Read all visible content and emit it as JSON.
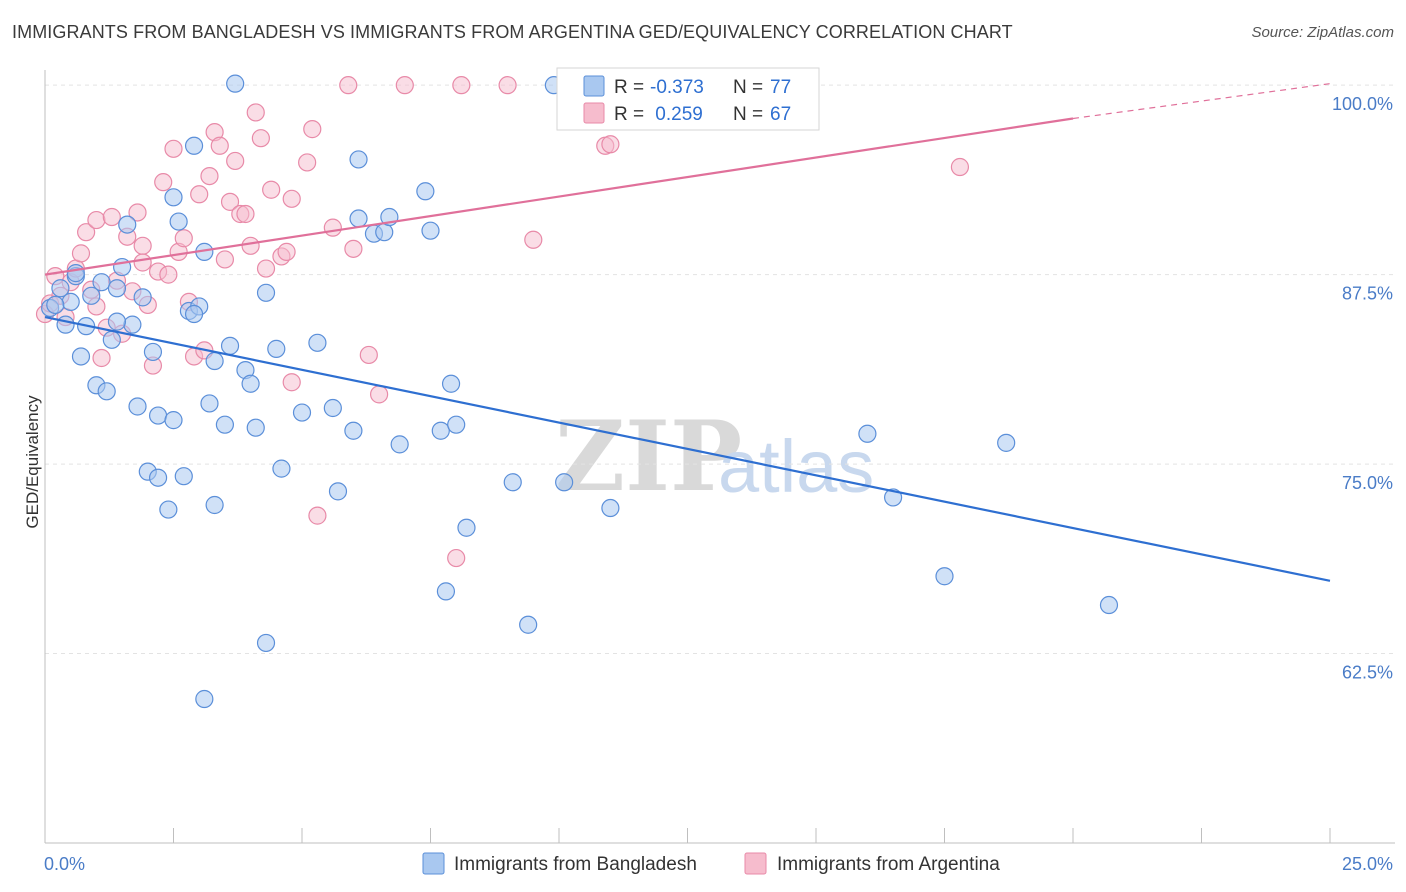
{
  "header": {
    "title": "IMMIGRANTS FROM BANGLADESH VS IMMIGRANTS FROM ARGENTINA GED/EQUIVALENCY CORRELATION CHART",
    "source": "Source: ZipAtlas.com"
  },
  "watermark": {
    "zip": "ZIP",
    "atlas": "atlas"
  },
  "colors": {
    "blue_fill": "#a9c8f0",
    "blue_stroke": "#5b8fd9",
    "blue_line": "#2e6fd1",
    "pink_fill": "#f6bccd",
    "pink_stroke": "#e88aa8",
    "pink_line": "#e0709a",
    "grid": "#e3e3e3",
    "tick_text": "#4a7cc7"
  },
  "legend": {
    "rows": [
      {
        "r_label": "R =",
        "r_value": "-0.373",
        "n_label": "N =",
        "n_value": "77"
      },
      {
        "r_label": "R =",
        "r_value": " 0.259",
        "n_label": "N =",
        "n_value": "67"
      }
    ]
  },
  "bottom_legend": {
    "series_a": "Immigrants from Bangladesh",
    "series_b": "Immigrants from Argentina"
  },
  "chart_data": {
    "type": "scatter",
    "title": "IMMIGRANTS FROM BANGLADESH VS IMMIGRANTS FROM ARGENTINA GED/EQUIVALENCY CORRELATION CHART",
    "xlabel": "",
    "ylabel": "GED/Equivalency",
    "xlim": [
      0,
      25
    ],
    "ylim": [
      50,
      101
    ],
    "x_tick_labels": [
      "0.0%",
      "25.0%"
    ],
    "y_ticks": [
      62.5,
      75.0,
      87.5,
      100.0
    ],
    "y_tick_labels": [
      "62.5%",
      "75.0%",
      "87.5%",
      "100.0%"
    ],
    "legend_position": "top-center",
    "series": [
      {
        "name": "Immigrants from Bangladesh",
        "r": -0.373,
        "n": 77,
        "trend": {
          "x": [
            0,
            25
          ],
          "y": [
            84.7,
            67.3
          ]
        },
        "points": [
          [
            0.1,
            85.3
          ],
          [
            0.3,
            86.6
          ],
          [
            0.5,
            85.7
          ],
          [
            0.6,
            87.4
          ],
          [
            0.8,
            84.1
          ],
          [
            0.9,
            86.1
          ],
          [
            0.7,
            82.1
          ],
          [
            1.0,
            80.2
          ],
          [
            1.1,
            87.0
          ],
          [
            1.2,
            79.8
          ],
          [
            1.3,
            83.2
          ],
          [
            1.4,
            86.6
          ],
          [
            1.5,
            88.0
          ],
          [
            1.6,
            90.8
          ],
          [
            1.7,
            84.2
          ],
          [
            1.8,
            78.8
          ],
          [
            1.9,
            86.0
          ],
          [
            2.0,
            74.5
          ],
          [
            2.1,
            82.4
          ],
          [
            2.2,
            78.2
          ],
          [
            2.2,
            74.1
          ],
          [
            2.4,
            72.0
          ],
          [
            2.5,
            92.6
          ],
          [
            2.5,
            77.9
          ],
          [
            2.6,
            91.0
          ],
          [
            2.7,
            74.2
          ],
          [
            2.8,
            85.1
          ],
          [
            2.9,
            96.0
          ],
          [
            3.0,
            85.4
          ],
          [
            3.1,
            89.0
          ],
          [
            3.1,
            59.5
          ],
          [
            3.2,
            79.0
          ],
          [
            3.3,
            81.8
          ],
          [
            3.3,
            72.3
          ],
          [
            3.5,
            77.6
          ],
          [
            3.6,
            82.8
          ],
          [
            3.7,
            100.1
          ],
          [
            3.9,
            81.2
          ],
          [
            4.0,
            80.3
          ],
          [
            4.1,
            77.4
          ],
          [
            4.3,
            86.3
          ],
          [
            4.5,
            82.6
          ],
          [
            4.6,
            74.7
          ],
          [
            4.3,
            63.2
          ],
          [
            5.0,
            78.4
          ],
          [
            5.3,
            83.0
          ],
          [
            5.6,
            78.7
          ],
          [
            5.7,
            73.2
          ],
          [
            6.0,
            77.2
          ],
          [
            6.1,
            91.2
          ],
          [
            6.1,
            95.1
          ],
          [
            6.4,
            90.2
          ],
          [
            6.6,
            90.3
          ],
          [
            6.7,
            91.3
          ],
          [
            6.9,
            76.3
          ],
          [
            7.4,
            93.0
          ],
          [
            7.5,
            90.4
          ],
          [
            7.7,
            77.2
          ],
          [
            7.8,
            66.6
          ],
          [
            7.9,
            80.3
          ],
          [
            8.0,
            77.6
          ],
          [
            8.2,
            70.8
          ],
          [
            9.1,
            73.8
          ],
          [
            9.4,
            64.4
          ],
          [
            9.9,
            100.0
          ],
          [
            10.1,
            73.8
          ],
          [
            11.0,
            72.1
          ],
          [
            16.0,
            77.0
          ],
          [
            16.5,
            72.8
          ],
          [
            17.5,
            67.6
          ],
          [
            18.7,
            76.4
          ],
          [
            20.7,
            65.7
          ],
          [
            1.4,
            84.4
          ],
          [
            0.2,
            85.5
          ],
          [
            0.6,
            87.6
          ],
          [
            2.9,
            84.9
          ],
          [
            0.4,
            84.2
          ]
        ]
      },
      {
        "name": "Immigrants from Argentina",
        "r": 0.259,
        "n": 67,
        "trend": {
          "x": [
            0,
            20
          ],
          "y": [
            87.5,
            97.8
          ]
        },
        "trend_dashed": {
          "x": [
            20,
            25
          ],
          "y": [
            97.8,
            100.1
          ]
        },
        "points": [
          [
            0.0,
            84.9
          ],
          [
            0.1,
            85.6
          ],
          [
            0.2,
            87.4
          ],
          [
            0.3,
            86.1
          ],
          [
            0.5,
            87.0
          ],
          [
            0.6,
            87.9
          ],
          [
            0.7,
            88.9
          ],
          [
            0.8,
            90.3
          ],
          [
            0.9,
            86.5
          ],
          [
            1.0,
            85.4
          ],
          [
            1.0,
            91.1
          ],
          [
            1.1,
            82.0
          ],
          [
            1.2,
            84.0
          ],
          [
            1.3,
            91.3
          ],
          [
            1.4,
            87.1
          ],
          [
            1.5,
            83.6
          ],
          [
            1.6,
            90.0
          ],
          [
            1.7,
            86.4
          ],
          [
            1.8,
            91.6
          ],
          [
            1.9,
            89.4
          ],
          [
            2.0,
            85.5
          ],
          [
            2.1,
            81.5
          ],
          [
            2.2,
            87.7
          ],
          [
            2.3,
            93.6
          ],
          [
            2.4,
            87.5
          ],
          [
            2.5,
            95.8
          ],
          [
            2.6,
            89.0
          ],
          [
            2.7,
            89.9
          ],
          [
            2.8,
            85.7
          ],
          [
            2.9,
            82.1
          ],
          [
            3.0,
            92.8
          ],
          [
            3.1,
            82.5
          ],
          [
            3.2,
            94.0
          ],
          [
            3.3,
            96.9
          ],
          [
            3.4,
            96.0
          ],
          [
            3.5,
            88.5
          ],
          [
            3.6,
            92.3
          ],
          [
            3.7,
            95.0
          ],
          [
            3.8,
            91.5
          ],
          [
            3.9,
            91.5
          ],
          [
            4.0,
            89.4
          ],
          [
            4.1,
            98.2
          ],
          [
            4.2,
            96.5
          ],
          [
            4.3,
            87.9
          ],
          [
            4.4,
            93.1
          ],
          [
            4.6,
            88.7
          ],
          [
            4.7,
            89.0
          ],
          [
            4.8,
            80.4
          ],
          [
            4.8,
            92.5
          ],
          [
            5.1,
            94.9
          ],
          [
            5.2,
            97.1
          ],
          [
            5.3,
            71.6
          ],
          [
            5.6,
            90.6
          ],
          [
            5.9,
            100.0
          ],
          [
            6.0,
            89.2
          ],
          [
            6.3,
            82.2
          ],
          [
            6.5,
            79.6
          ],
          [
            7.0,
            100.0
          ],
          [
            8.0,
            68.8
          ],
          [
            8.1,
            100.0
          ],
          [
            9.0,
            100.0
          ],
          [
            9.5,
            89.8
          ],
          [
            10.9,
            96.0
          ],
          [
            11.0,
            96.1
          ],
          [
            17.8,
            94.6
          ],
          [
            1.9,
            88.3
          ],
          [
            0.4,
            84.7
          ]
        ]
      }
    ]
  }
}
